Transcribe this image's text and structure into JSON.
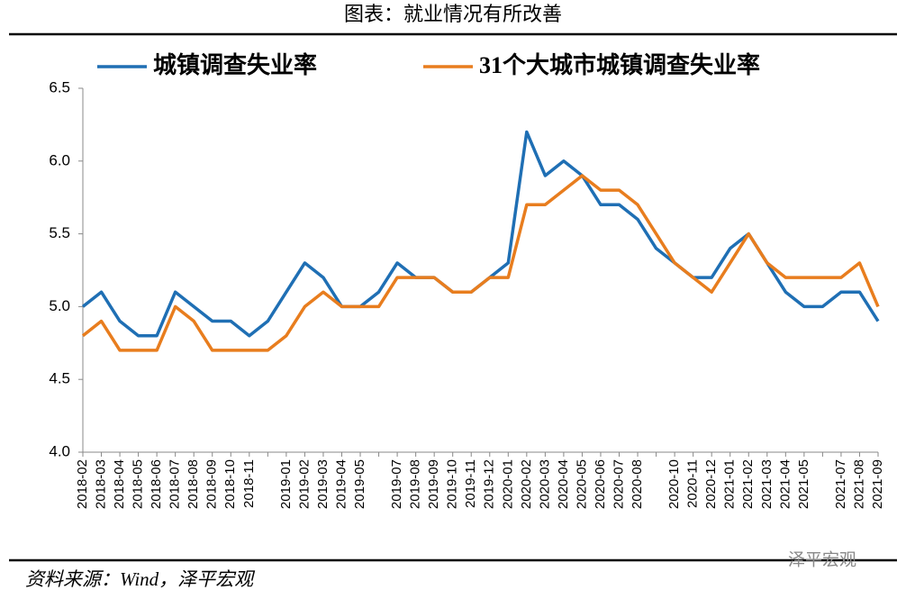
{
  "chart_data": {
    "type": "line",
    "title": "图表：就业情况有所改善",
    "source": "资料来源：Wind，泽平宏观",
    "watermark": "泽平宏观",
    "categories": [
      "2018-02",
      "2018-03",
      "2018-04",
      "2018-05",
      "2018-06",
      "2018-07",
      "2018-08",
      "2018-09",
      "2018-10",
      "2018-11",
      null,
      "2019-01",
      "2019-02",
      "2019-03",
      "2019-04",
      "2019-05",
      null,
      "2019-07",
      "2019-08",
      "2019-09",
      "2019-10",
      "2019-11",
      "2019-12",
      "2020-01",
      "2020-02",
      "2020-03",
      "2020-04",
      "2020-05",
      "2020-06",
      "2020-07",
      "2020-08",
      null,
      "2020-10",
      "2020-11",
      "2020-12",
      "2021-01",
      "2021-02",
      "2021-03",
      "2021-04",
      "2021-05",
      null,
      "2021-07",
      "2021-08",
      "2021-09"
    ],
    "series": [
      {
        "name": "城镇调查失业率",
        "color": "#1f6fb4",
        "values": [
          5.0,
          5.1,
          4.9,
          4.8,
          4.8,
          5.1,
          5.0,
          4.9,
          4.9,
          4.8,
          4.9,
          5.1,
          5.3,
          5.2,
          5.0,
          5.0,
          5.1,
          5.3,
          5.2,
          5.2,
          5.1,
          5.1,
          5.2,
          5.3,
          6.2,
          5.9,
          6.0,
          5.9,
          5.7,
          5.7,
          5.6,
          5.4,
          5.3,
          5.2,
          5.2,
          5.4,
          5.5,
          5.3,
          5.1,
          5.0,
          5.0,
          5.1,
          5.1,
          4.9
        ]
      },
      {
        "name": "31个大城市城镇调查失业率",
        "color": "#e87d1e",
        "values": [
          4.8,
          4.9,
          4.7,
          4.7,
          4.7,
          5.0,
          4.9,
          4.7,
          4.7,
          4.7,
          4.7,
          4.8,
          5.0,
          5.1,
          5.0,
          5.0,
          5.0,
          5.2,
          5.2,
          5.2,
          5.1,
          5.1,
          5.2,
          5.2,
          5.7,
          5.7,
          5.8,
          5.9,
          5.8,
          5.8,
          5.7,
          5.5,
          5.3,
          5.2,
          5.1,
          5.3,
          5.5,
          5.3,
          5.2,
          5.2,
          5.2,
          5.2,
          5.3,
          5.0
        ]
      }
    ],
    "ylim": [
      4.0,
      6.5
    ],
    "yticks": [
      {
        "value": 4.0,
        "label": "4.0"
      },
      4.5,
      {
        "value": 5.0,
        "label": "5.0"
      },
      5.5,
      {
        "value": 6.0,
        "label": "6.0"
      },
      6.5
    ],
    "grid": false
  }
}
